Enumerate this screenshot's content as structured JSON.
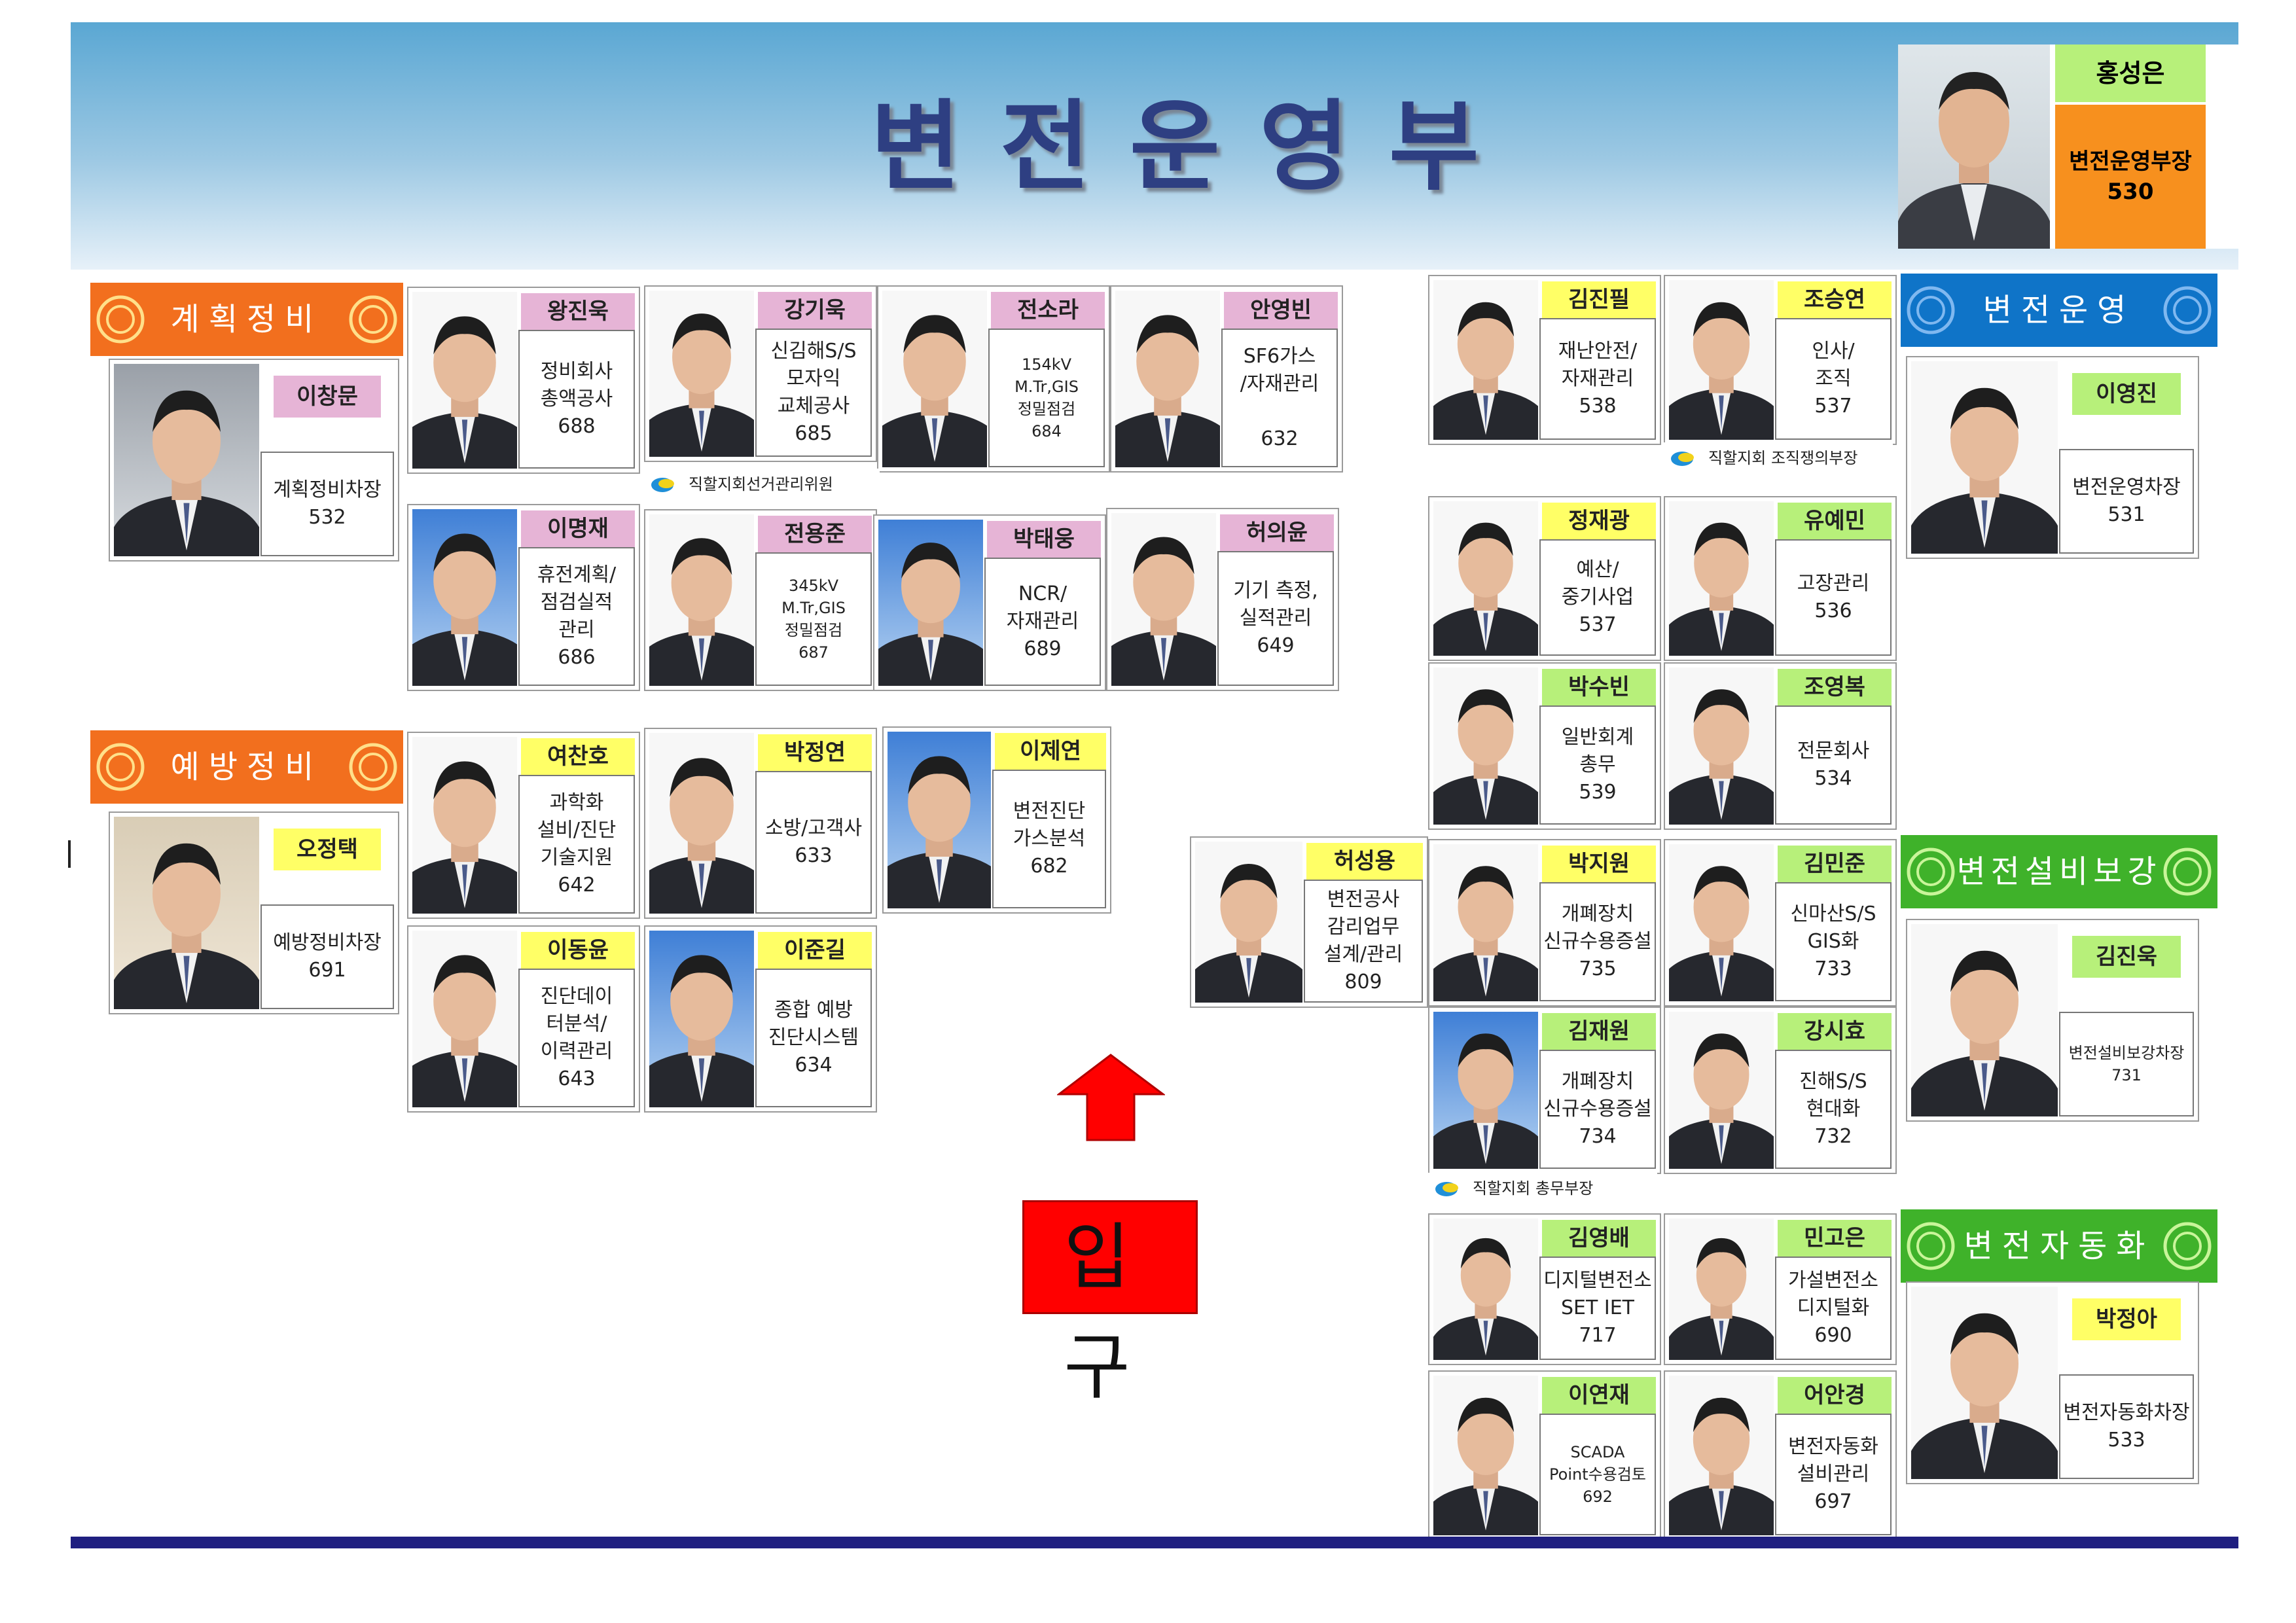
{
  "page": {
    "title": "변전운영부"
  },
  "head": {
    "name": "홍성은",
    "title_line1": "변전운영부장",
    "title_line2": "530"
  },
  "sections": {
    "planning": "계획정비",
    "preventive": "예방정비",
    "operation": "변전운영",
    "facility": "변전설비보강",
    "automation": "변전자동화"
  },
  "entrance": {
    "label": "입 구"
  },
  "notes": {
    "election": "직할지회선거관리위원",
    "organizer": "직할지회  조직쟁의부장",
    "general": "직할지회  총무부장"
  },
  "staff": {
    "p01": {
      "name": "이창문",
      "lines": [
        "계획정비차장",
        "532"
      ]
    },
    "p02": {
      "name": "왕진욱",
      "lines": [
        "정비회사",
        "총액공사",
        "688"
      ]
    },
    "p03": {
      "name": "강기욱",
      "lines": [
        "신김해S/S",
        "모자익",
        "교체공사",
        "685"
      ]
    },
    "p04": {
      "name": "전소라",
      "lines": [
        "154kV",
        "M.Tr,GIS",
        "정밀점검",
        "684"
      ]
    },
    "p05": {
      "name": "안영빈",
      "lines": [
        "SF6가스",
        "/자재관리",
        "",
        "632"
      ]
    },
    "p06": {
      "name": "이명재",
      "lines": [
        "휴전계획/",
        "점검실적",
        "관리",
        "686"
      ]
    },
    "p07": {
      "name": "전용준",
      "lines": [
        "345kV",
        "M.Tr,GIS",
        "정밀점검",
        "687"
      ]
    },
    "p08": {
      "name": "박태웅",
      "lines": [
        "NCR/",
        "자재관리",
        "689"
      ]
    },
    "p09": {
      "name": "허의윤",
      "lines": [
        "기기 측정,",
        "실적관리",
        "649"
      ]
    },
    "p10": {
      "name": "오정택",
      "lines": [
        "예방정비차장",
        "691"
      ]
    },
    "p11": {
      "name": "여찬호",
      "lines": [
        "과학화",
        "설비/진단",
        "기술지원",
        "642"
      ]
    },
    "p12": {
      "name": "박정연",
      "lines": [
        "소방/고객사",
        "633"
      ]
    },
    "p13": {
      "name": "이제연",
      "lines": [
        "변전진단",
        "가스분석",
        "682"
      ]
    },
    "p14": {
      "name": "이동윤",
      "lines": [
        "진단데이",
        "터분석/",
        "이력관리",
        "643"
      ]
    },
    "p15": {
      "name": "이준길",
      "lines": [
        "종합 예방",
        "진단시스템",
        "634"
      ]
    },
    "p16": {
      "name": "허성용",
      "lines": [
        "변전공사",
        "감리업무",
        "설계/관리",
        "809"
      ]
    },
    "p17": {
      "name": "김진필",
      "lines": [
        "재난안전/",
        "자재관리",
        "538"
      ]
    },
    "p18": {
      "name": "조승연",
      "lines": [
        "인사/",
        "조직",
        "537"
      ]
    },
    "p19": {
      "name": "이영진",
      "lines": [
        "변전운영차장",
        "531"
      ]
    },
    "p20": {
      "name": "정재광",
      "lines": [
        "예산/",
        "중기사업",
        "537"
      ]
    },
    "p21": {
      "name": "유예민",
      "lines": [
        "고장관리",
        "536"
      ]
    },
    "p22": {
      "name": "박수빈",
      "lines": [
        "일반회계",
        "총무",
        "539"
      ]
    },
    "p23": {
      "name": "조영복",
      "lines": [
        "전문회사",
        "534"
      ]
    },
    "p24": {
      "name": "박지원",
      "lines": [
        "개폐장치",
        "신규수용증설",
        "735"
      ]
    },
    "p25": {
      "name": "김민준",
      "lines": [
        "신마산S/S",
        "GIS화",
        "733"
      ]
    },
    "p26": {
      "name": "김진욱",
      "lines": [
        "변전설비보강차장",
        "731"
      ]
    },
    "p27": {
      "name": "김재원",
      "lines": [
        "개폐장치",
        "신규수용증설",
        "734"
      ]
    },
    "p28": {
      "name": "강시효",
      "lines": [
        "진해S/S",
        "현대화",
        "732"
      ]
    },
    "p29": {
      "name": "김영배",
      "lines": [
        "디지털변전소",
        "SET IET",
        "717"
      ]
    },
    "p30": {
      "name": "민고은",
      "lines": [
        "가설변전소",
        "디지털화",
        "690"
      ]
    },
    "p31": {
      "name": "박정아",
      "lines": [
        "변전자동화차장",
        "533"
      ]
    },
    "p32": {
      "name": "이연재",
      "lines": [
        "SCADA",
        "Point수용검토",
        "692"
      ]
    },
    "p33": {
      "name": "어안경",
      "lines": [
        "변전자동화",
        "설비관리",
        "697"
      ]
    }
  },
  "colors": {
    "header_top": "#5aa7d3",
    "title": "#2e3f82",
    "orange": "#f26f1e",
    "blue": "#0f74c8",
    "green": "#3fb22a",
    "rule": "#1f1f80",
    "entrance": "#ff0000"
  },
  "icons": [
    "person-silhouette-icon",
    "union-emblem-icon",
    "union-logo-icon",
    "up-arrow-icon"
  ]
}
